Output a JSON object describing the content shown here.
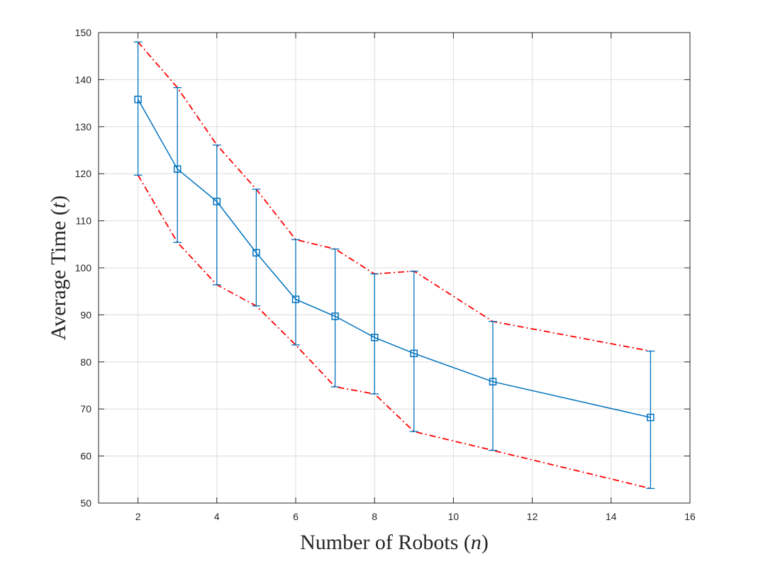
{
  "chart_data": {
    "type": "line",
    "title": "",
    "xlabel": "Number of Robots",
    "xlabel_var": "n",
    "ylabel": "Average Time",
    "ylabel_var": "t",
    "xlim": [
      1,
      16
    ],
    "ylim": [
      50,
      150
    ],
    "xticks": [
      2,
      4,
      6,
      8,
      10,
      12,
      14,
      16
    ],
    "yticks": [
      50,
      60,
      70,
      80,
      90,
      100,
      110,
      120,
      130,
      140,
      150
    ],
    "grid": true,
    "x": [
      2,
      3,
      4,
      5,
      6,
      7,
      8,
      9,
      11,
      15
    ],
    "series": [
      {
        "role": "mean",
        "marker": "square",
        "color": "#0072BD",
        "values": [
          135.8,
          121.0,
          114.1,
          103.2,
          93.3,
          89.7,
          85.2,
          81.8,
          75.8,
          68.2
        ],
        "error_upper": [
          148.0,
          138.3,
          126.1,
          116.7,
          106.0,
          104.0,
          98.7,
          99.3,
          88.6,
          82.3
        ],
        "error_lower": [
          119.7,
          105.4,
          96.4,
          91.9,
          83.6,
          74.7,
          73.2,
          65.2,
          61.2,
          53.1
        ]
      },
      {
        "role": "upper-bound",
        "style": "dash-dot",
        "color": "#FF0000",
        "values": [
          148.0,
          138.3,
          126.1,
          116.7,
          106.0,
          104.0,
          98.7,
          99.3,
          88.6,
          82.3
        ]
      },
      {
        "role": "lower-bound",
        "style": "dash-dot",
        "color": "#FF0000",
        "values": [
          119.7,
          105.4,
          96.4,
          91.9,
          83.6,
          74.7,
          73.2,
          65.2,
          61.2,
          53.1
        ]
      }
    ]
  }
}
